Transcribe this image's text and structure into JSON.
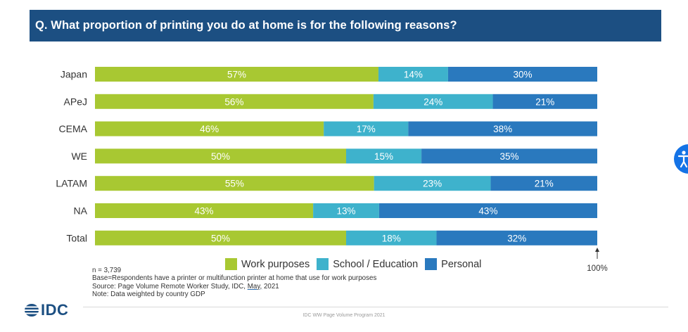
{
  "header": {
    "question": "Q. What proportion of printing you do at home is for the following reasons?"
  },
  "chart_data": {
    "type": "bar",
    "orientation": "horizontal",
    "stacked": true,
    "categories": [
      "Japan",
      "APeJ",
      "CEMA",
      "WE",
      "LATAM",
      "NA",
      "Total"
    ],
    "series": [
      {
        "name": "Work purposes",
        "values": [
          57,
          56,
          46,
          50,
          55,
          43,
          50
        ],
        "color": "#a8c832"
      },
      {
        "name": "School / Education",
        "values": [
          14,
          24,
          17,
          15,
          23,
          13,
          18
        ],
        "color": "#3eb2cc"
      },
      {
        "name": "Personal",
        "values": [
          30,
          21,
          38,
          35,
          21,
          43,
          32
        ],
        "color": "#2a79be"
      }
    ],
    "label_suffix": "%",
    "scale_label": "100%",
    "legend_position": "bottom",
    "label_color": "#ffffff",
    "category_label_color": "#333333"
  },
  "footnotes": {
    "n": "n = 3,739",
    "base": "Base=Respondents have a printer or multifunction printer at home that use for work purposes",
    "source_prefix": "Source: Page Volume Remote Worker Study, IDC, ",
    "source_month": "May,",
    "source_suffix": " 2021",
    "note": "Note: Data weighted by country GDP"
  },
  "brand": {
    "logo": "IDC",
    "logo_icon": "idc-stripes-icon",
    "footer": "IDC WW Page Volume Program 2021",
    "accent": "#1c4f82"
  }
}
